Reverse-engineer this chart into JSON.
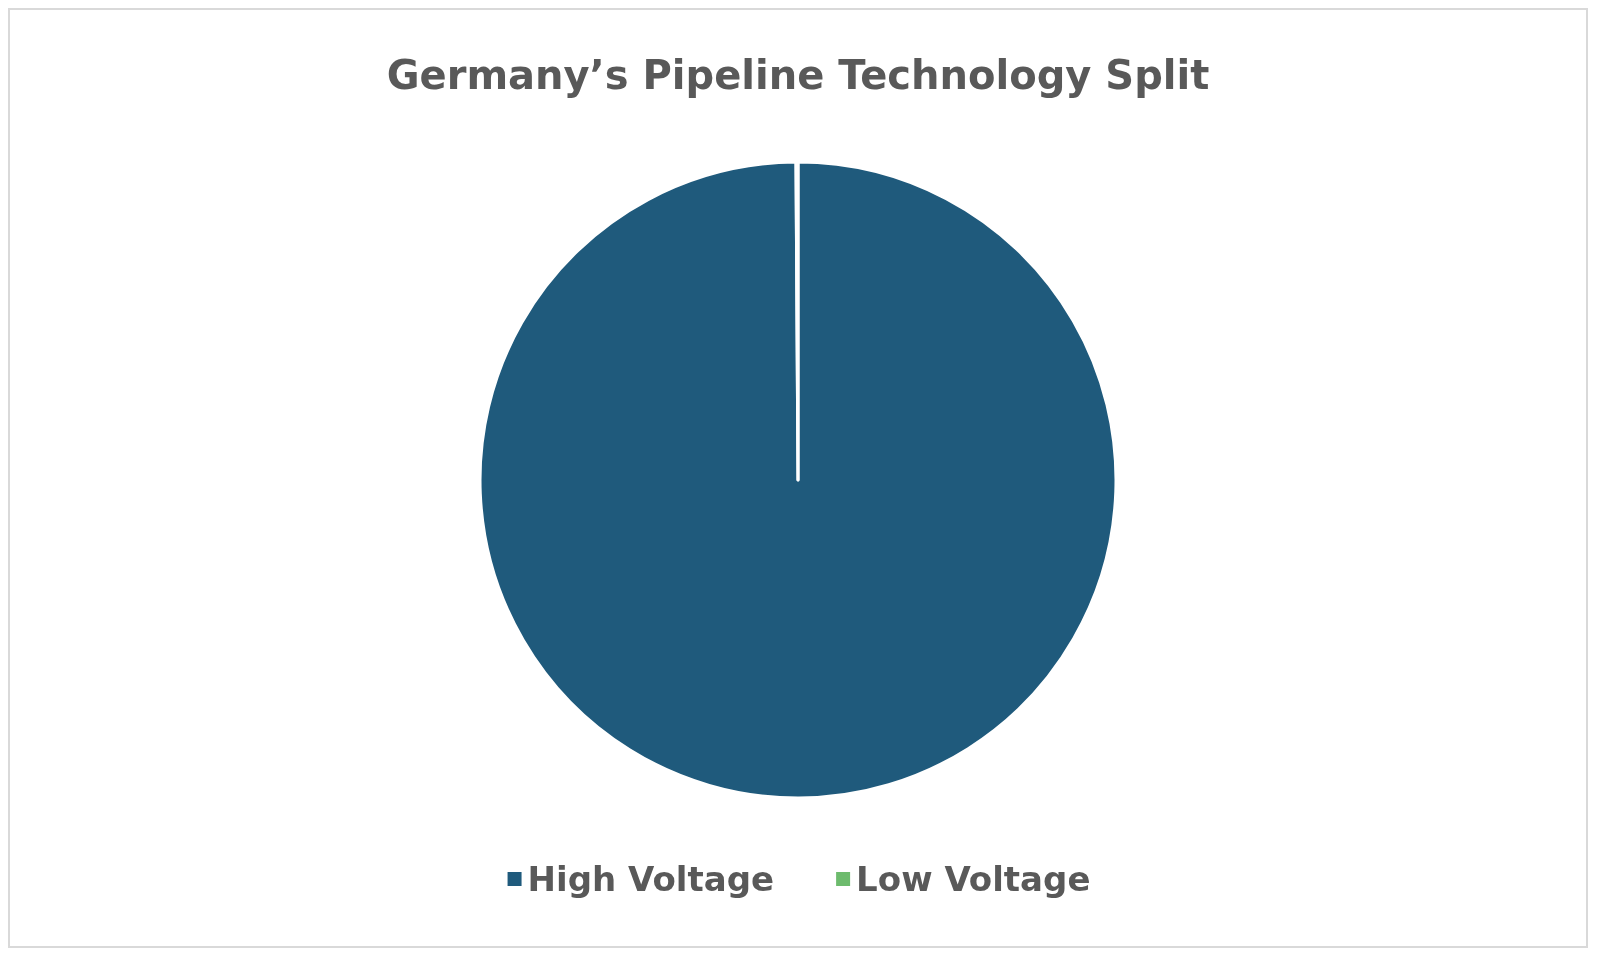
{
  "chart_data": {
    "type": "pie",
    "title": "Germany’s Pipeline Technology Split",
    "categories": [
      "High Voltage",
      "Low Voltage"
    ],
    "values": [
      99.9,
      0.1
    ],
    "colors": [
      "#1f5a7c",
      "#6dbb6d"
    ],
    "legend": "bottom"
  }
}
